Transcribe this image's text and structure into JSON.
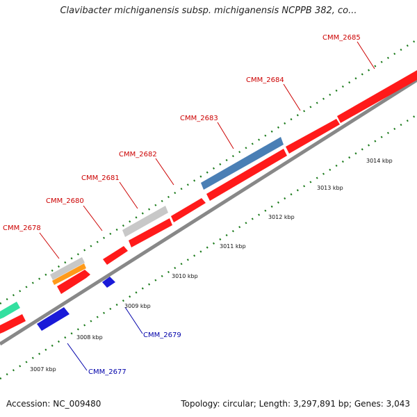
{
  "title": "Clavibacter michiganensis subsp. michiganensis NCPPB 382, co...",
  "footer": {
    "accession": "Accession: NC_009480",
    "topology": "Topology: circular; Length: 3,297,891 bp; Genes: 3,043"
  },
  "colors": {
    "cds_forward": "#ff1a1a",
    "cds_reverse": "#1a1ad8",
    "label_forward": "#cc0000",
    "label_reverse": "#0000aa",
    "backbone": "#888888",
    "ticks": "#1a7a1a",
    "gray_feature": "#c8c8c8",
    "orange_feature": "#ff9a1a",
    "blue_feature": "#4a7fb5",
    "teal_feature": "#33e0a0"
  },
  "scale_labels": [
    "3007 kbp",
    "3008 kbp",
    "3009 kbp",
    "3010 kbp",
    "3011 kbp",
    "3012 kbp",
    "3013 kbp",
    "3014 kbp"
  ],
  "forward_genes": [
    {
      "label": "CMM_2678"
    },
    {
      "label": "CMM_2680"
    },
    {
      "label": "CMM_2681"
    },
    {
      "label": "CMM_2682"
    },
    {
      "label": "CMM_2683"
    },
    {
      "label": "CMM_2684"
    },
    {
      "label": "CMM_2685"
    }
  ],
  "reverse_genes": [
    {
      "label": "CMM_2677"
    },
    {
      "label": "CMM_2679"
    }
  ]
}
